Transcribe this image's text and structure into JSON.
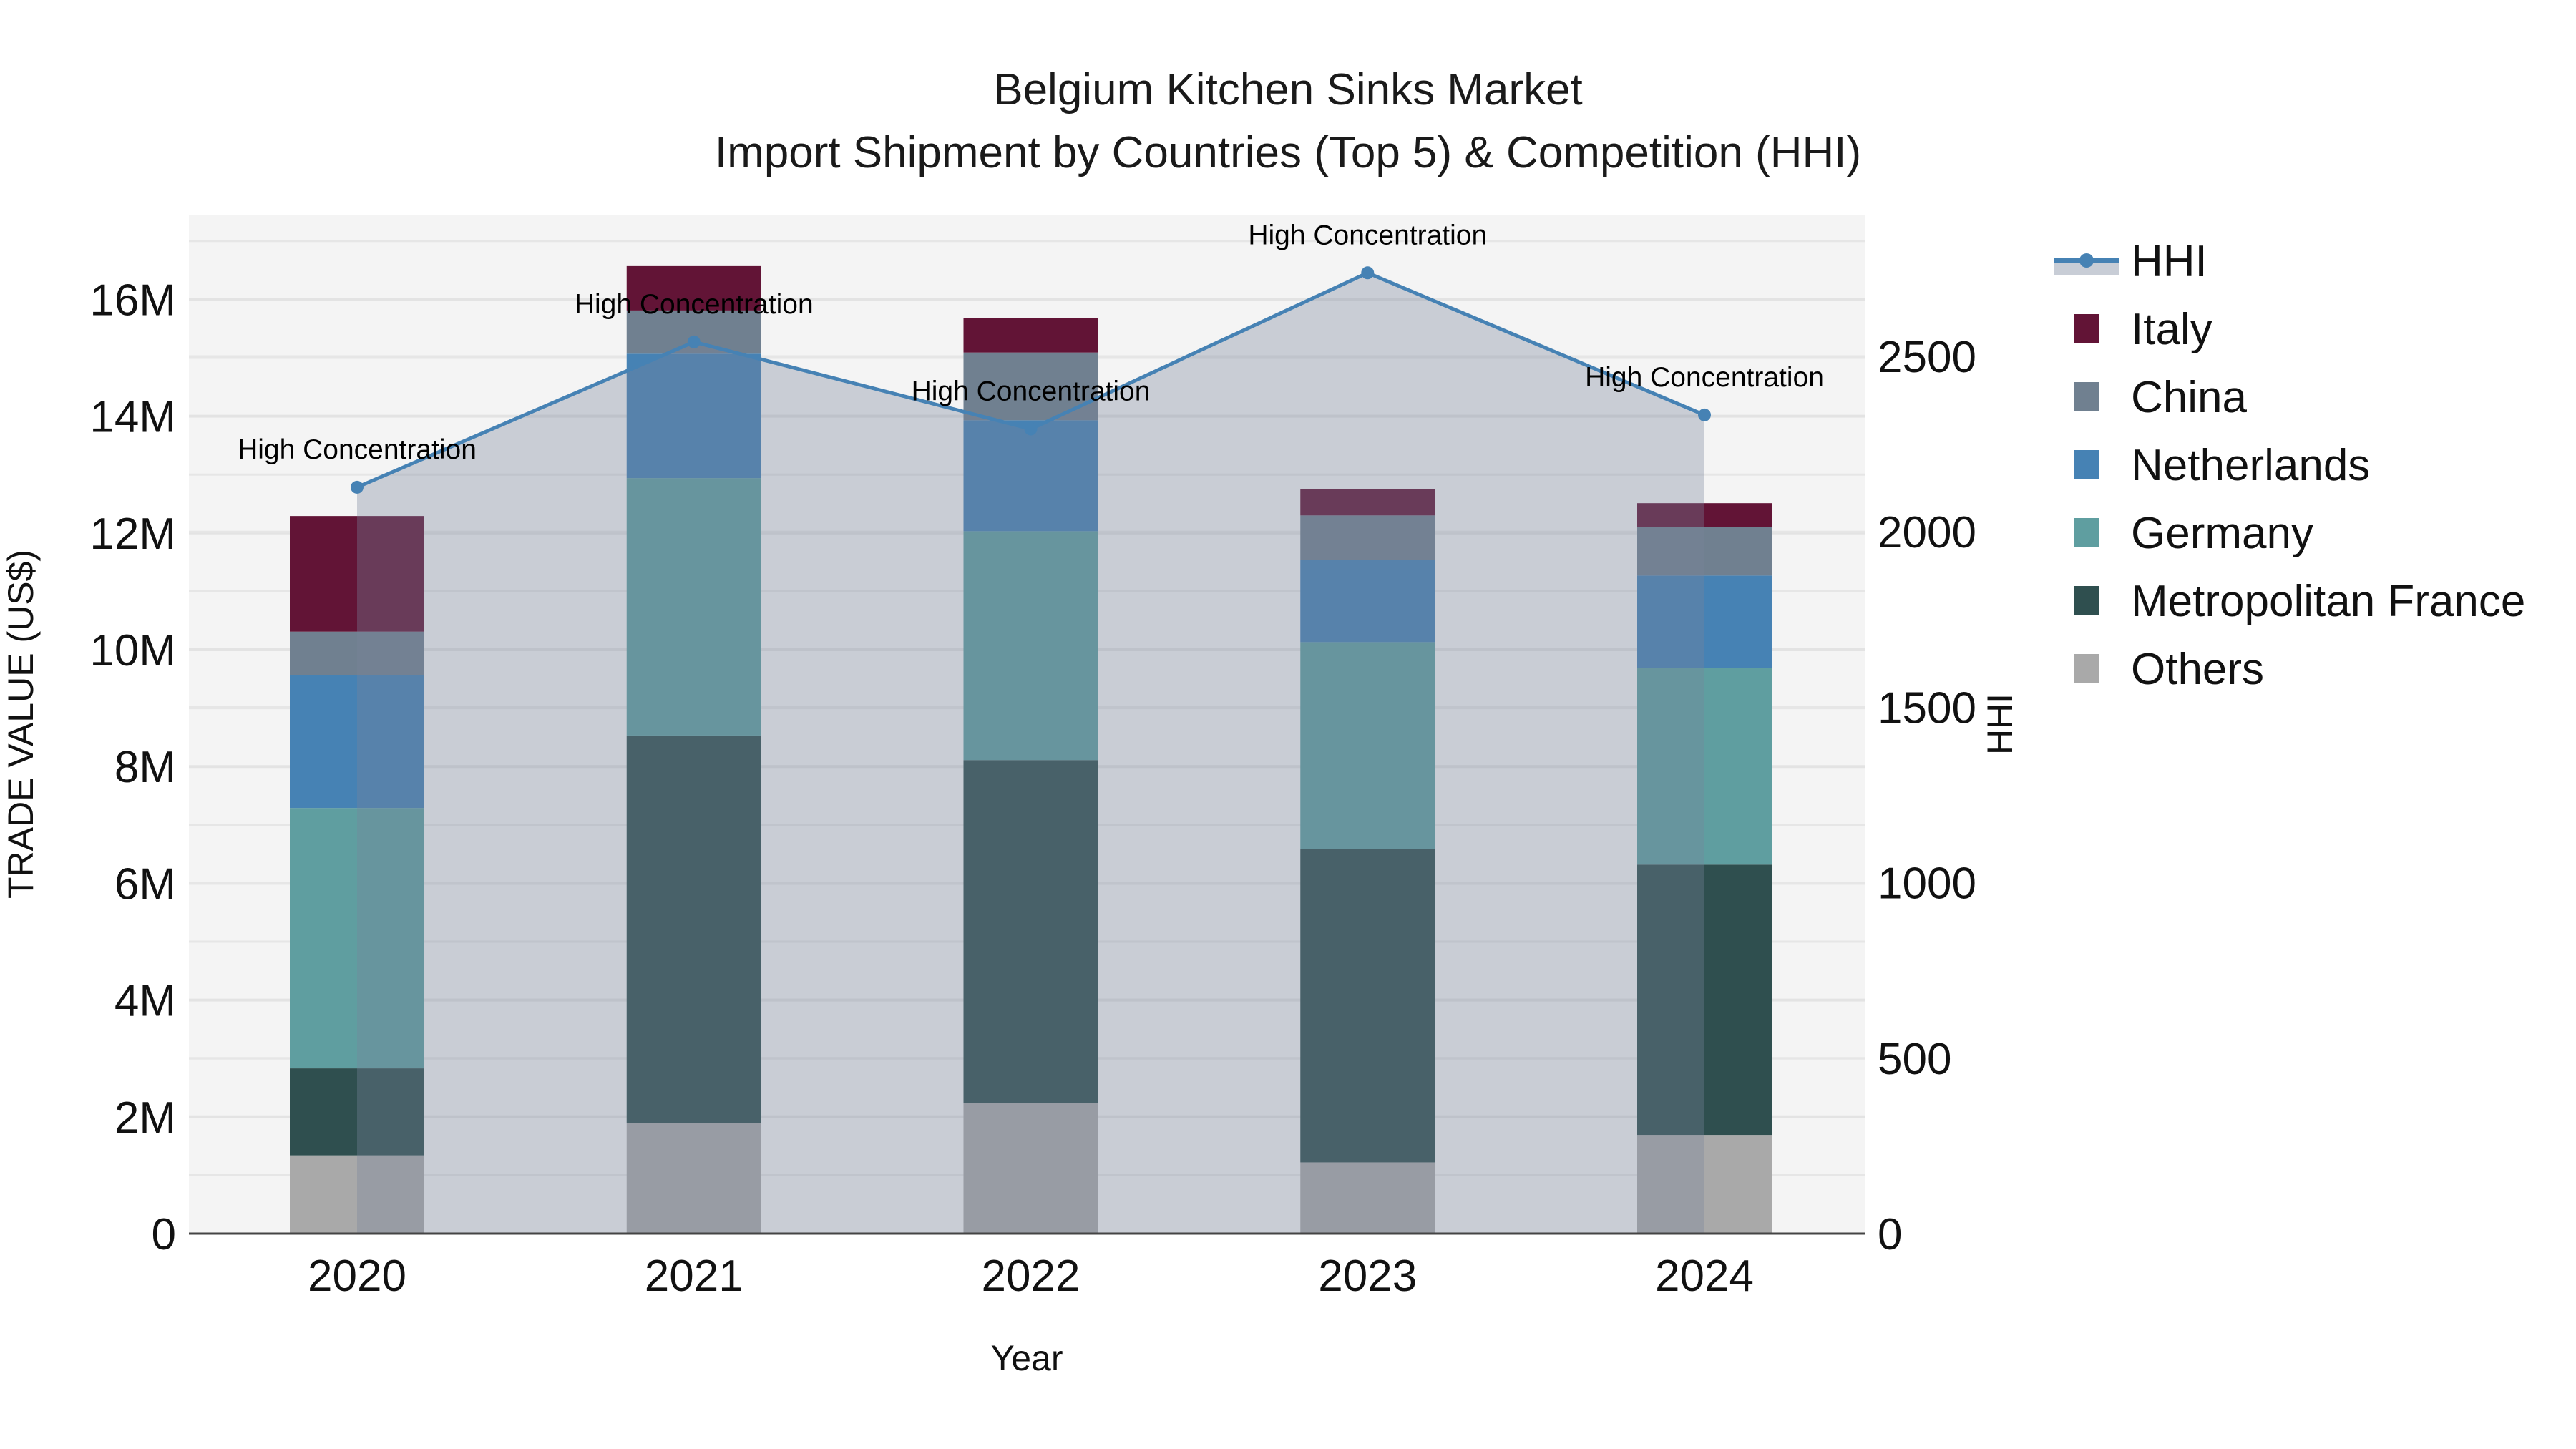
{
  "title": {
    "line1": "Belgium Kitchen Sinks Market",
    "line2": "Import Shipment by Countries (Top 5) & Competition (HHI)"
  },
  "axes": {
    "x_title": "Year",
    "y_left_title": "TRADE VALUE (US$)",
    "y_right_title": "HHI",
    "y_left_ticks": [
      "0",
      "2M",
      "4M",
      "6M",
      "8M",
      "10M",
      "12M",
      "14M",
      "16M"
    ],
    "y_right_ticks": [
      "0",
      "500",
      "1000",
      "1500",
      "2000",
      "2500"
    ]
  },
  "legend": {
    "items": [
      {
        "label": "HHI",
        "type": "line",
        "color": "#4682B4",
        "fill": "#C8CDD6"
      },
      {
        "label": "Italy",
        "type": "box",
        "color": "#621436"
      },
      {
        "label": "China",
        "type": "box",
        "color": "#708090"
      },
      {
        "label": "Netherlands",
        "type": "box",
        "color": "#4682B4"
      },
      {
        "label": "Germany",
        "type": "box",
        "color": "#5F9EA0"
      },
      {
        "label": "Metropolitan France",
        "type": "box",
        "color": "#2F4F4F"
      },
      {
        "label": "Others",
        "type": "box",
        "color": "#A9A9A9"
      }
    ]
  },
  "annotations": {
    "label": "High Concentration"
  },
  "colors": {
    "plot_bg": "#F4F4F4",
    "hhi_line": "#4682B4",
    "hhi_fill": "rgba(120,132,155,0.35)",
    "axis_line": "#444444"
  },
  "chart_data": {
    "type": "bar",
    "stacked": true,
    "title": "Belgium Kitchen Sinks Market — Import Shipment by Countries (Top 5) & Competition (HHI)",
    "xlabel": "Year",
    "ylabel": "TRADE VALUE (US$)",
    "y2label": "HHI",
    "categories": [
      "2020",
      "2021",
      "2022",
      "2023",
      "2024"
    ],
    "ylim": [
      0,
      17400000
    ],
    "y2lim": [
      0,
      2900
    ],
    "grid": true,
    "legend_position": "right",
    "series": [
      {
        "name": "Others",
        "color": "#A9A9A9",
        "values": [
          1340000,
          1890000,
          2240000,
          1220000,
          1690000
        ]
      },
      {
        "name": "Metropolitan France",
        "color": "#2F4F4F",
        "values": [
          1490000,
          6640000,
          5870000,
          5370000,
          4630000
        ]
      },
      {
        "name": "Germany",
        "color": "#5F9EA0",
        "values": [
          4460000,
          4410000,
          3920000,
          3540000,
          3370000
        ]
      },
      {
        "name": "Netherlands",
        "color": "#4682B4",
        "values": [
          2280000,
          2130000,
          1900000,
          1410000,
          1580000
        ]
      },
      {
        "name": "China",
        "color": "#708090",
        "values": [
          740000,
          740000,
          1160000,
          760000,
          830000
        ]
      },
      {
        "name": "Italy",
        "color": "#621436",
        "values": [
          1980000,
          760000,
          590000,
          450000,
          410000
        ]
      }
    ],
    "totals": [
      12290000,
      16570000,
      15680000,
      12750000,
      12510000
    ],
    "line_series": {
      "name": "HHI",
      "axis": "right",
      "color": "#4682B4",
      "values": [
        2127,
        2541,
        2293,
        2738,
        2333
      ],
      "annotations": [
        "High Concentration",
        "High Concentration",
        "High Concentration",
        "High Concentration",
        "High Concentration"
      ]
    }
  }
}
